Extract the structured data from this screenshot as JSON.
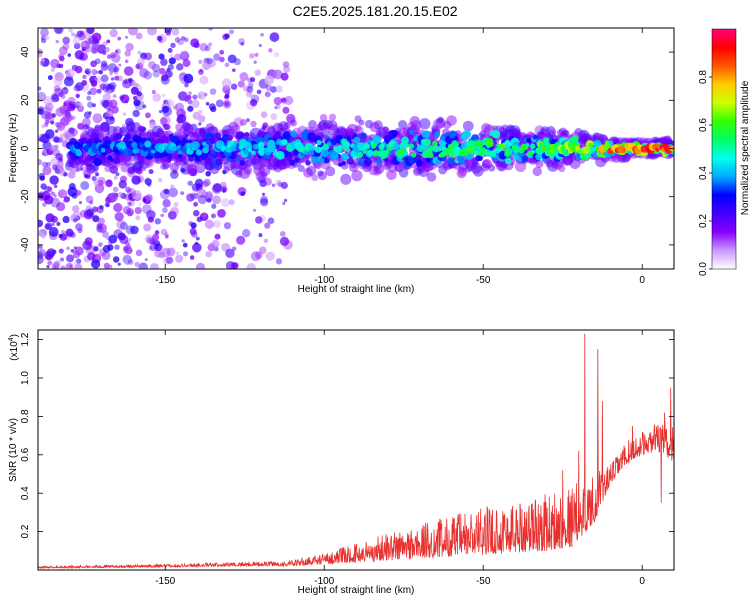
{
  "figure": {
    "title": "C2E5.2025.181.20.15.E02"
  },
  "chart_data": [
    {
      "type": "heatmap",
      "xlabel": "Height of straight line (km)",
      "ylabel": "Frequency (Hz)",
      "xlim": [
        -190,
        10
      ],
      "ylim": [
        -50,
        50
      ],
      "xticks": [
        -150,
        -100,
        -50,
        0
      ],
      "yticks": [
        -40,
        -20,
        0,
        20,
        40
      ],
      "grid": false,
      "colorbar": {
        "label": "Normalized spectral amplitude",
        "range": [
          0,
          1
        ],
        "ticks": [
          0.0,
          0.2,
          0.4,
          0.6,
          0.8
        ],
        "colormap": [
          "#ffffff",
          "#cc99ff",
          "#8800ff",
          "#4400ff",
          "#0000ff",
          "#00aaff",
          "#00ffee",
          "#00ff66",
          "#33ff00",
          "#ccff00",
          "#ffcc00",
          "#ff5500",
          "#ff0000",
          "#ff0077"
        ]
      },
      "band_profile": [
        {
          "x": -175,
          "half_width_hz": 5,
          "peak": 0.4
        },
        {
          "x": -150,
          "half_width_hz": 5,
          "peak": 0.42
        },
        {
          "x": -125,
          "half_width_hz": 6,
          "peak": 0.45
        },
        {
          "x": -100,
          "half_width_hz": 7,
          "peak": 0.5
        },
        {
          "x": -75,
          "half_width_hz": 7,
          "peak": 0.55
        },
        {
          "x": -50,
          "half_width_hz": 6,
          "peak": 0.6
        },
        {
          "x": -25,
          "half_width_hz": 5,
          "peak": 0.65
        },
        {
          "x": -10,
          "half_width_hz": 3,
          "peak": 0.85
        },
        {
          "x": 0,
          "half_width_hz": 2,
          "peak": 0.95
        },
        {
          "x": 10,
          "half_width_hz": 2,
          "peak": 0.92
        }
      ],
      "scatter_region": {
        "x_range": [
          -190,
          -110
        ],
        "y_range": [
          -50,
          50
        ],
        "typical_amplitude": 0.2
      }
    },
    {
      "type": "line",
      "xlabel": "Height of straight line (km)",
      "ylabel": "SNR (10 * v/v)",
      "y_multiplier_label": "(x10",
      "y_multiplier_exponent": "4",
      "xlim": [
        -190,
        10
      ],
      "ylim": [
        0,
        1.25
      ],
      "xticks": [
        -150,
        -100,
        -50,
        0
      ],
      "yticks": [
        0.2,
        0.4,
        0.6,
        0.8,
        1.0,
        1.2
      ],
      "grid": false,
      "series": [
        {
          "color": "#e8302e",
          "envelope": [
            {
              "x": -190,
              "base": 0.01,
              "spread": 0.01
            },
            {
              "x": -150,
              "base": 0.015,
              "spread": 0.015
            },
            {
              "x": -130,
              "base": 0.02,
              "spread": 0.02
            },
            {
              "x": -110,
              "base": 0.02,
              "spread": 0.03
            },
            {
              "x": -100,
              "base": 0.03,
              "spread": 0.06
            },
            {
              "x": -90,
              "base": 0.04,
              "spread": 0.1
            },
            {
              "x": -80,
              "base": 0.05,
              "spread": 0.15
            },
            {
              "x": -70,
              "base": 0.06,
              "spread": 0.18
            },
            {
              "x": -60,
              "base": 0.07,
              "spread": 0.22
            },
            {
              "x": -50,
              "base": 0.08,
              "spread": 0.25
            },
            {
              "x": -40,
              "base": 0.09,
              "spread": 0.28
            },
            {
              "x": -30,
              "base": 0.1,
              "spread": 0.3
            },
            {
              "x": -22,
              "base": 0.12,
              "spread": 0.33
            },
            {
              "x": -15,
              "base": 0.25,
              "spread": 0.25
            },
            {
              "x": -10,
              "base": 0.45,
              "spread": 0.1
            },
            {
              "x": -5,
              "base": 0.55,
              "spread": 0.12
            },
            {
              "x": 0,
              "base": 0.6,
              "spread": 0.12
            },
            {
              "x": 5,
              "base": 0.62,
              "spread": 0.15
            },
            {
              "x": 10,
              "base": 0.55,
              "spread": 0.2
            }
          ],
          "spikes": [
            {
              "x": -18,
              "y": 1.23
            },
            {
              "x": -14,
              "y": 1.15
            },
            {
              "x": -12.5,
              "y": 0.88
            },
            {
              "x": -20,
              "y": 0.62
            },
            {
              "x": -25,
              "y": 0.52
            },
            {
              "x": -3,
              "y": 0.75
            },
            {
              "x": 7,
              "y": 0.82
            },
            {
              "x": 9,
              "y": 0.95
            },
            {
              "x": 6,
              "y": 0.35
            }
          ]
        }
      ]
    }
  ]
}
